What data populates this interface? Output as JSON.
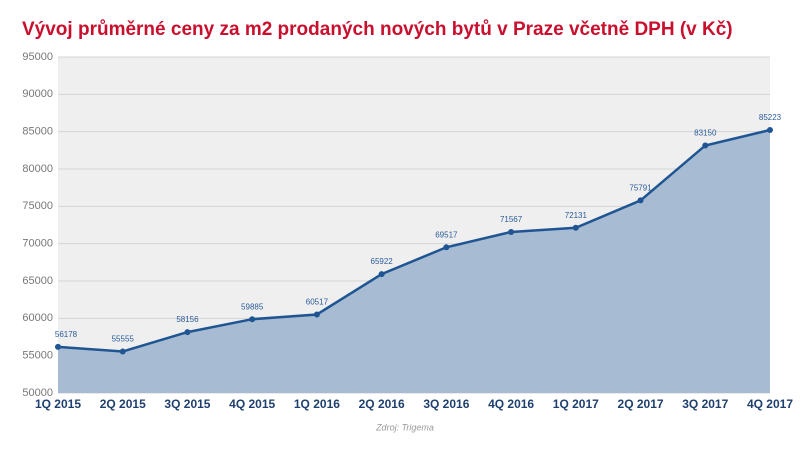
{
  "chart_data": {
    "type": "area",
    "title": "Vývoj průměrné ceny za m2 prodaných nových bytů v Praze včetně DPH (v Kč)",
    "source": "Zdroj: Trigema",
    "categories": [
      "1Q 2015",
      "2Q 2015",
      "3Q 2015",
      "4Q 2015",
      "1Q 2016",
      "2Q 2016",
      "3Q 2016",
      "4Q 2016",
      "1Q 2017",
      "2Q 2017",
      "3Q 2017",
      "4Q 2017"
    ],
    "values": [
      56178,
      55555,
      58156,
      59885,
      60517,
      65922,
      69517,
      71567,
      72131,
      75791,
      83150,
      85223
    ],
    "color": "#1f5592",
    "area_color": "#a7bbd2",
    "ylim": [
      50000,
      95000
    ],
    "yticks": [
      50000,
      55000,
      60000,
      65000,
      70000,
      75000,
      80000,
      85000,
      90000,
      95000
    ],
    "grid": true
  }
}
